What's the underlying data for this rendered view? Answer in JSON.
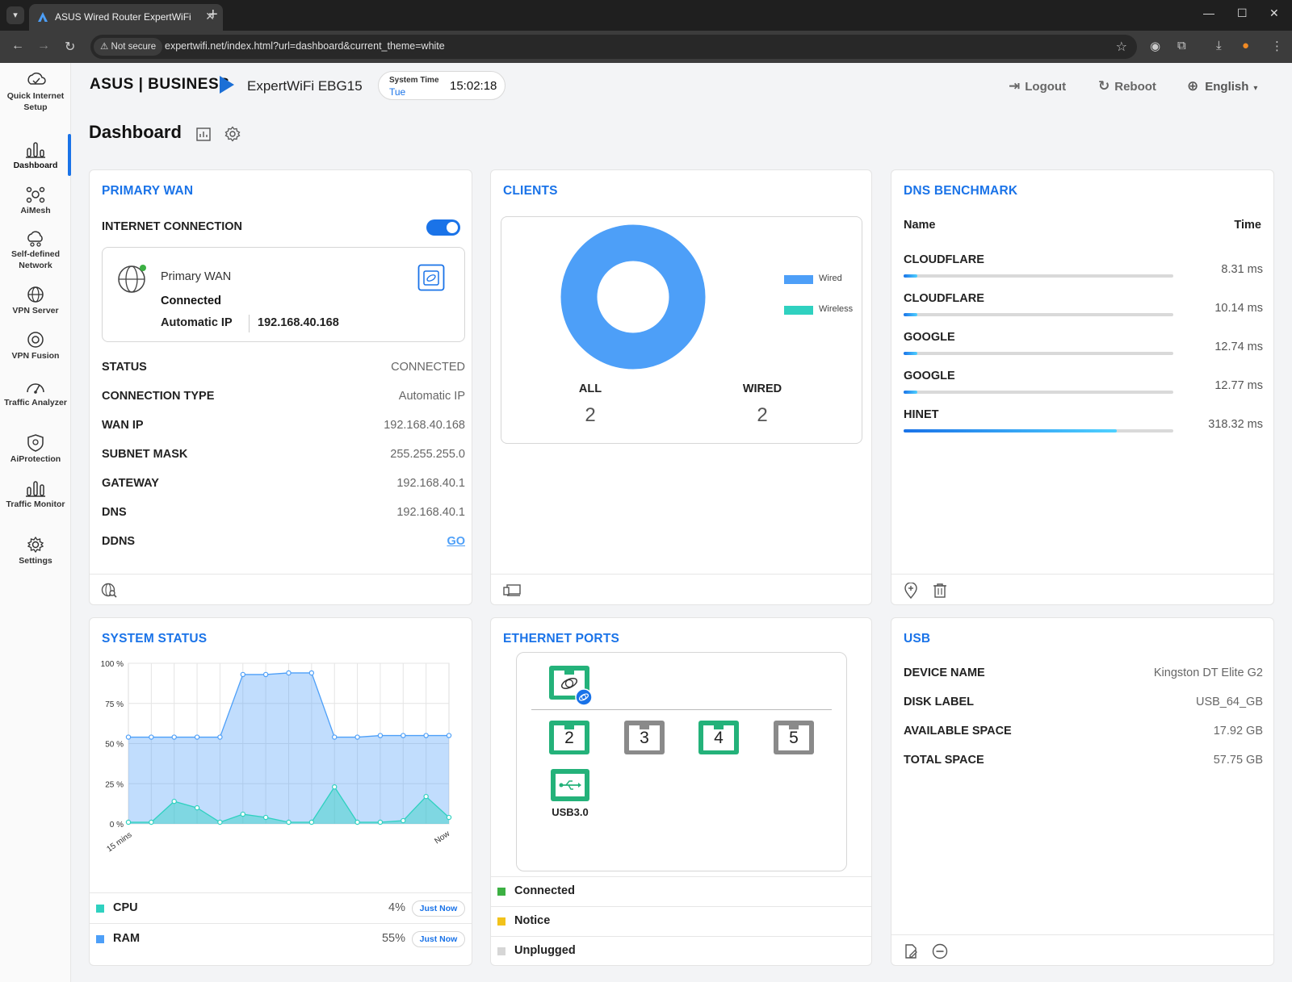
{
  "browser": {
    "tab_title": "ASUS Wired Router ExpertWiFi",
    "not_secure": "Not secure",
    "url": "expertwifi.net/index.html?url=dashboard&current_theme=white"
  },
  "sidebar": {
    "items": [
      {
        "label": "Quick Internet Setup",
        "icon": "quick-setup-icon"
      },
      {
        "label": "Dashboard",
        "icon": "dashboard-icon"
      },
      {
        "label": "AiMesh",
        "icon": "aimesh-icon"
      },
      {
        "label": "Self-defined Network",
        "icon": "network-icon"
      },
      {
        "label": "VPN Server",
        "icon": "vpn-server-icon"
      },
      {
        "label": "VPN Fusion",
        "icon": "vpn-fusion-icon"
      },
      {
        "label": "Traffic Analyzer",
        "icon": "traffic-analyzer-icon"
      },
      {
        "label": "AiProtection",
        "icon": "shield-icon"
      },
      {
        "label": "Traffic Monitor",
        "icon": "traffic-monitor-icon"
      },
      {
        "label": "Settings",
        "icon": "gear-icon"
      }
    ]
  },
  "header": {
    "brand": "ASUS | BUSINESS",
    "model": "ExpertWiFi EBG15",
    "system_time_label": "System Time",
    "day": "Tue",
    "time": "15:02:18",
    "logout": "Logout",
    "reboot": "Reboot",
    "language": "English"
  },
  "page": {
    "title": "Dashboard"
  },
  "primary_wan": {
    "title": "PRIMARY WAN",
    "internet_connection_label": "INTERNET CONNECTION",
    "box_title": "Primary WAN",
    "box_status": "Connected",
    "box_type": "Automatic IP",
    "box_ip": "192.168.40.168",
    "rows": [
      {
        "k": "STATUS",
        "v": "CONNECTED"
      },
      {
        "k": "CONNECTION TYPE",
        "v": "Automatic IP"
      },
      {
        "k": "WAN IP",
        "v": "192.168.40.168"
      },
      {
        "k": "SUBNET MASK",
        "v": "255.255.255.0"
      },
      {
        "k": "GATEWAY",
        "v": "192.168.40.1"
      },
      {
        "k": "DNS",
        "v": "192.168.40.1"
      },
      {
        "k": "DDNS",
        "v": "GO"
      }
    ]
  },
  "clients": {
    "title": "CLIENTS",
    "legend_wired": "Wired",
    "legend_wireless": "Wireless",
    "all_label": "ALL",
    "all_value": "2",
    "wired_label": "WIRED",
    "wired_value": "2",
    "wired_color": "#4d9ff8",
    "wireless_color": "#2fd1c0"
  },
  "dns_benchmark": {
    "title": "DNS BENCHMARK",
    "col_name": "Name",
    "col_time": "Time",
    "rows": [
      {
        "name": "CLOUDFLARE",
        "time": "8.31 ms",
        "fraction": 0.05
      },
      {
        "name": "CLOUDFLARE",
        "time": "10.14 ms",
        "fraction": 0.05
      },
      {
        "name": "GOOGLE",
        "time": "12.74 ms",
        "fraction": 0.05
      },
      {
        "name": "GOOGLE",
        "time": "12.77 ms",
        "fraction": 0.05
      },
      {
        "name": "HINET",
        "time": "318.32 ms",
        "fraction": 0.79
      }
    ]
  },
  "system_status": {
    "title": "SYSTEM STATUS",
    "cpu_label": "CPU",
    "cpu_value": "4%",
    "ram_label": "RAM",
    "ram_value": "55%",
    "just_now": "Just Now",
    "cpu_color": "#2fd1c0",
    "ram_color": "#4d9ff8"
  },
  "chart_data": {
    "type": "area",
    "x_start_label": "15 mins",
    "x_end_label": "Now",
    "y_ticks": [
      "0 %",
      "25 %",
      "50 %",
      "75 %",
      "100 %"
    ],
    "ylim": [
      0,
      100
    ],
    "series": [
      {
        "name": "RAM",
        "values": [
          54,
          54,
          54,
          54,
          54,
          93,
          93,
          94,
          94,
          54,
          54,
          55,
          55,
          55,
          55
        ]
      },
      {
        "name": "CPU",
        "values": [
          1,
          1,
          14,
          10,
          1,
          6,
          4,
          1,
          1,
          23,
          1,
          1,
          2,
          17,
          4
        ]
      }
    ]
  },
  "ethernet": {
    "title": "ETHERNET PORTS",
    "ports": [
      {
        "label": "2",
        "state": "connected"
      },
      {
        "label": "3",
        "state": "unplugged"
      },
      {
        "label": "4",
        "state": "connected"
      },
      {
        "label": "5",
        "state": "unplugged"
      }
    ],
    "usb_label": "USB3.0",
    "legend": [
      {
        "label": "Connected",
        "color": "#3cb043"
      },
      {
        "label": "Notice",
        "color": "#f2c21b"
      },
      {
        "label": "Unplugged",
        "color": "#d6d6d6"
      }
    ],
    "connected_color": "#24b27a",
    "unplugged_color": "#8a8a8a"
  },
  "usb": {
    "title": "USB",
    "rows": [
      {
        "k": "DEVICE NAME",
        "v": "Kingston DT Elite G2"
      },
      {
        "k": "DISK LABEL",
        "v": "USB_64_GB"
      },
      {
        "k": "AVAILABLE SPACE",
        "v": "17.92 GB"
      },
      {
        "k": "TOTAL SPACE",
        "v": "57.75 GB"
      }
    ]
  }
}
